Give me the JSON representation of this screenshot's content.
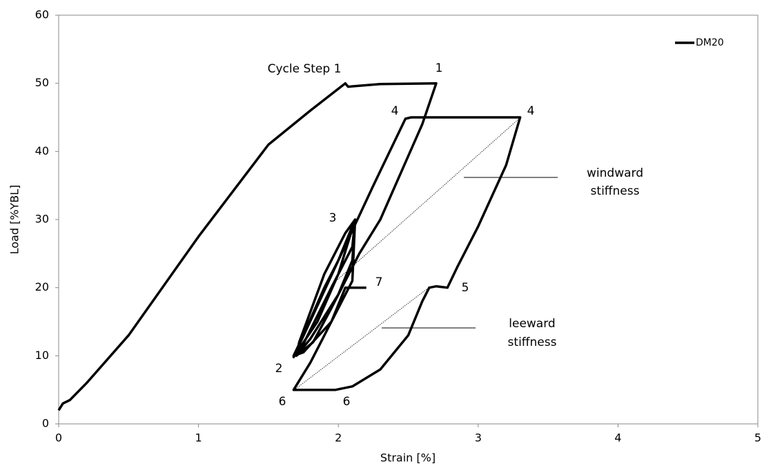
{
  "chart_data": {
    "type": "line",
    "xlabel": "Strain [%]",
    "ylabel": "Load [%YBL]",
    "xlim": [
      0,
      5
    ],
    "ylim": [
      0,
      60
    ],
    "xticks": [
      0,
      1,
      2,
      3,
      4,
      5
    ],
    "yticks": [
      0,
      10,
      20,
      30,
      40,
      50,
      60
    ],
    "grid": false,
    "legend": "top-right",
    "x": [
      0,
      0.03,
      0.08,
      0.2,
      0.5,
      1,
      1.5,
      1.8,
      2.05,
      2.07,
      2.3,
      2.7,
      2.6,
      2.45,
      2.3,
      2.15,
      1.95,
      1.82,
      1.7,
      1.8,
      2.0,
      2.1,
      2.12,
      2.0,
      1.9,
      1.75,
      1.68,
      1.75,
      1.95,
      2.1,
      2.12,
      2.05,
      1.9,
      1.72,
      1.7,
      1.72,
      1.95,
      2.1,
      2.12,
      2.0,
      1.85,
      1.68,
      2.0,
      2.25,
      2.48,
      2.52,
      3.0,
      3.3,
      3.2,
      3.0,
      2.85,
      2.78,
      2.7,
      2.65,
      2.6,
      2.5,
      2.3,
      2.1,
      1.98,
      1.68,
      1.8,
      1.95,
      2.05,
      2.1,
      2.2
    ],
    "series": [
      {
        "name": "DM20",
        "color": "#000000",
        "values": [
          2,
          3,
          3.5,
          6,
          13,
          27.5,
          41,
          46,
          50,
          49.5,
          49.9,
          50,
          44,
          37,
          30,
          25,
          17,
          12,
          10,
          12.5,
          19,
          24,
          30,
          24,
          20,
          13,
          10,
          10.5,
          15,
          21,
          30,
          28,
          22,
          12,
          10,
          10.5,
          20,
          26,
          30,
          22,
          15,
          9.8,
          24,
          35,
          44.8,
          45,
          45,
          45,
          38,
          29,
          23,
          20,
          20.2,
          20,
          18,
          13,
          8,
          5.5,
          5,
          5,
          9,
          15,
          20,
          20,
          20
        ]
      }
    ],
    "annotations": [
      "Cycle Step 1",
      "1",
      "4",
      "4",
      "windward",
      "stiffness",
      "3",
      "7",
      "5",
      "leeward",
      "stiffness",
      "2",
      "6",
      "6"
    ]
  }
}
